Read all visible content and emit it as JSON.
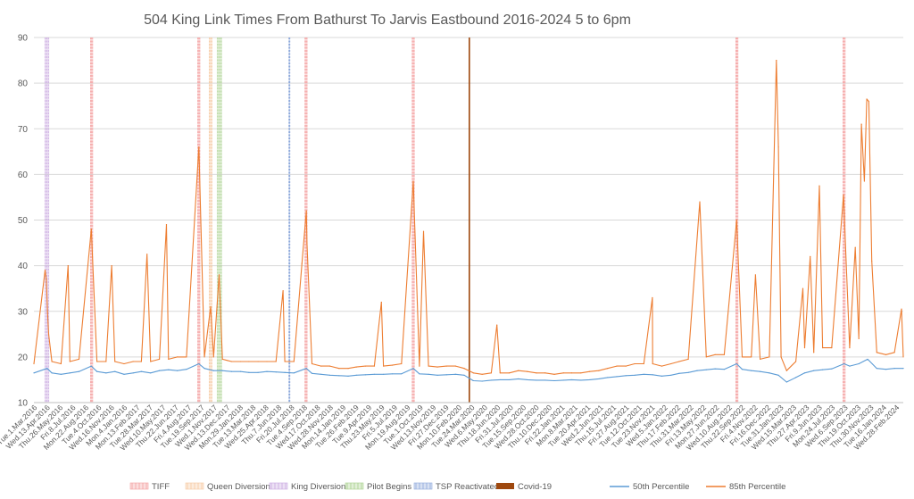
{
  "chart_data": {
    "type": "line",
    "title": "504 King Link Times From Bathurst To Jarvis Eastbound 2016-2024 5 to 6pm",
    "xlabel": "",
    "ylabel": "",
    "ylim": [
      10,
      90
    ],
    "yticks": [
      10,
      20,
      30,
      40,
      50,
      60,
      70,
      80,
      90
    ],
    "grid": true,
    "legend_position": "bottom",
    "x_range": [
      "2016-03-01",
      "2024-03-31"
    ],
    "x_tick_labels": [
      "Tue.1.Mar.2016",
      "Wed.13.Apr.2016",
      "Thu.26.May.2016",
      "Fri.8.Jul.2016",
      "Mon.22.Aug.2016",
      "Tue.4.Oct.2016",
      "Wed.16.Nov.2016",
      "Mon.4.Jan.2016",
      "Mon.13.Feb.2017",
      "Tue.28.Mar.2017",
      "Wed.10.May.2017",
      "Thu.22.Jun.2017",
      "Fri.4.Aug.2017",
      "Tue.19.Sep.2017",
      "Wed.1.Nov.2017",
      "Wed.13.Dec.2017",
      "Mon.29.Jan.2018",
      "Tue.13.Mar.2018",
      "Wed.25.Apr.2018",
      "Thu.7.Jun.2018",
      "Fri.20.Jul.2018",
      "Tue.4.Sep.2018",
      "Wed.17.Oct.2018",
      "Wed.28.Nov.2018",
      "Mon.14.Jan.2019",
      "Tue.26.Feb.2019",
      "Tue.9.Apr.2019",
      "Thu.23.May.2019",
      "Fri.5.Jul.2019",
      "Mon.19.Aug.2019",
      "Tue.1.Oct.2019",
      "Wed.13.Nov.2019",
      "Fri.27.Dec.2019",
      "Mon.10.Feb.2020",
      "Tue.24.Mar.2020",
      "Wed.6.May.2020",
      "Thu.18.Jun.2020",
      "Fri.31.Jul.2020",
      "Tue.15.Sep.2020",
      "Wed.28.Oct.2020",
      "Thu.10.Dec.2020",
      "Fri.22.Jan.2021",
      "Mon.8.Mar.2021",
      "Tue.20.Apr.2021",
      "Wed.2.Jun.2021",
      "Thu.15.Jul.2021",
      "Fri.27.Aug.2021",
      "Tue.12.Oct.2021",
      "Tue.23.Nov.2021",
      "Wed.5.Jan.2022",
      "Thu.17.Feb.2022",
      "Thu.31.Mar.2022",
      "Fri.13.May.2022",
      "Mon.27.Jun.2022",
      "Wed.10.Aug.2022",
      "Thu.22.Sep.2022",
      "Fri.4.Nov.2022",
      "Fri.16.Dec.2022",
      "Tue.31.Jan.2023",
      "Wed.15.Mar.2023",
      "Thu.27.Apr.2023",
      "Fri.9.Jun.2023",
      "Mon.24.Jul.2023",
      "Wed.6.Sep.2023",
      "Thu.19.Oct.2023",
      "Thu.30.Nov.2023",
      "Tue.16.Jan.2024",
      "Wed.28.Feb.2024"
    ],
    "legend": [
      {
        "name": "TIFF",
        "color": "#f4a0a0",
        "style": "hatch"
      },
      {
        "name": "Queen Diversion",
        "color": "#f5c8a0",
        "style": "hatch"
      },
      {
        "name": "King Diversion",
        "color": "#c9a8e0",
        "style": "hatch"
      },
      {
        "name": "Pilot Begins",
        "color": "#a8d08d",
        "style": "hatch"
      },
      {
        "name": "TSP Reactivated",
        "color": "#8ea9db",
        "style": "hatch"
      },
      {
        "name": "Covid-19",
        "color": "#9e480e",
        "style": "solid"
      },
      {
        "name": "50th Percentile",
        "color": "#5b9bd5",
        "style": "line"
      },
      {
        "name": "85th Percentile",
        "color": "#ed7d31",
        "style": "line"
      }
    ],
    "event_bands": [
      {
        "name": "King Diversion",
        "start": "2016-04-06",
        "end": "2016-04-22",
        "color": "#c9a8e0"
      },
      {
        "name": "TIFF",
        "start": "2016-09-08",
        "end": "2016-09-18",
        "color": "#f4a0a0"
      },
      {
        "name": "TIFF",
        "start": "2017-09-07",
        "end": "2017-09-17",
        "color": "#f4a0a0"
      },
      {
        "name": "Queen Diversion",
        "start": "2017-10-16",
        "end": "2017-10-28",
        "color": "#f5c8a0"
      },
      {
        "name": "Pilot Begins",
        "start": "2017-11-12",
        "end": "2017-11-30",
        "color": "#a8d08d"
      },
      {
        "name": "TSP Reactivated",
        "start": "2018-07-14",
        "end": "2018-07-19",
        "color": "#8ea9db"
      },
      {
        "name": "TIFF",
        "start": "2018-09-06",
        "end": "2018-09-16",
        "color": "#f4a0a0"
      },
      {
        "name": "TIFF",
        "start": "2019-09-05",
        "end": "2019-09-15",
        "color": "#f4a0a0"
      },
      {
        "name": "Covid-19",
        "start": "2020-03-16",
        "end": "2020-03-17",
        "color": "#9e480e"
      },
      {
        "name": "TIFF",
        "start": "2022-09-08",
        "end": "2022-09-18",
        "color": "#f4a0a0"
      },
      {
        "name": "TIFF",
        "start": "2023-09-07",
        "end": "2023-09-17",
        "color": "#f4a0a0"
      }
    ],
    "series": [
      {
        "name": "50th Percentile",
        "color": "#5b9bd5",
        "points": [
          [
            "2016-03-01",
            16.5
          ],
          [
            "2016-04-15",
            17.5
          ],
          [
            "2016-05-01",
            16.5
          ],
          [
            "2016-06-01",
            16.2
          ],
          [
            "2016-07-01",
            16.5
          ],
          [
            "2016-08-01",
            16.8
          ],
          [
            "2016-09-12",
            18.0
          ],
          [
            "2016-10-01",
            16.8
          ],
          [
            "2016-11-01",
            16.5
          ],
          [
            "2016-12-01",
            16.8
          ],
          [
            "2017-01-01",
            16.2
          ],
          [
            "2017-02-01",
            16.5
          ],
          [
            "2017-03-01",
            16.8
          ],
          [
            "2017-04-01",
            16.5
          ],
          [
            "2017-05-01",
            17.0
          ],
          [
            "2017-06-01",
            17.2
          ],
          [
            "2017-07-01",
            17.0
          ],
          [
            "2017-08-01",
            17.3
          ],
          [
            "2017-09-12",
            18.5
          ],
          [
            "2017-10-01",
            17.5
          ],
          [
            "2017-11-01",
            17.0
          ],
          [
            "2017-12-01",
            17.0
          ],
          [
            "2018-01-01",
            16.8
          ],
          [
            "2018-02-01",
            16.8
          ],
          [
            "2018-03-01",
            16.6
          ],
          [
            "2018-04-01",
            16.6
          ],
          [
            "2018-05-01",
            16.8
          ],
          [
            "2018-06-01",
            16.7
          ],
          [
            "2018-07-01",
            16.6
          ],
          [
            "2018-08-01",
            16.5
          ],
          [
            "2018-09-12",
            17.5
          ],
          [
            "2018-10-01",
            16.4
          ],
          [
            "2018-11-01",
            16.2
          ],
          [
            "2018-12-01",
            16.0
          ],
          [
            "2019-01-01",
            15.9
          ],
          [
            "2019-02-01",
            15.8
          ],
          [
            "2019-03-01",
            16.0
          ],
          [
            "2019-04-01",
            16.1
          ],
          [
            "2019-05-01",
            16.2
          ],
          [
            "2019-06-01",
            16.2
          ],
          [
            "2019-07-01",
            16.3
          ],
          [
            "2019-08-01",
            16.3
          ],
          [
            "2019-09-10",
            17.5
          ],
          [
            "2019-10-01",
            16.3
          ],
          [
            "2019-11-01",
            16.2
          ],
          [
            "2019-12-01",
            16.0
          ],
          [
            "2020-01-01",
            16.1
          ],
          [
            "2020-02-01",
            16.2
          ],
          [
            "2020-03-01",
            16.0
          ],
          [
            "2020-04-01",
            14.8
          ],
          [
            "2020-05-01",
            14.7
          ],
          [
            "2020-06-01",
            14.9
          ],
          [
            "2020-07-01",
            15.0
          ],
          [
            "2020-08-01",
            15.0
          ],
          [
            "2020-09-01",
            15.2
          ],
          [
            "2020-10-01",
            15.0
          ],
          [
            "2020-11-01",
            14.9
          ],
          [
            "2020-12-01",
            14.9
          ],
          [
            "2021-01-01",
            14.8
          ],
          [
            "2021-02-01",
            14.9
          ],
          [
            "2021-03-01",
            15.0
          ],
          [
            "2021-04-01",
            14.9
          ],
          [
            "2021-05-01",
            15.0
          ],
          [
            "2021-06-01",
            15.2
          ],
          [
            "2021-07-01",
            15.5
          ],
          [
            "2021-08-01",
            15.7
          ],
          [
            "2021-09-01",
            15.9
          ],
          [
            "2021-10-01",
            16.0
          ],
          [
            "2021-11-01",
            16.2
          ],
          [
            "2021-12-01",
            16.1
          ],
          [
            "2022-01-01",
            15.8
          ],
          [
            "2022-02-01",
            16.0
          ],
          [
            "2022-03-01",
            16.4
          ],
          [
            "2022-04-01",
            16.6
          ],
          [
            "2022-05-01",
            17.0
          ],
          [
            "2022-06-01",
            17.2
          ],
          [
            "2022-07-01",
            17.4
          ],
          [
            "2022-08-01",
            17.3
          ],
          [
            "2022-09-12",
            18.5
          ],
          [
            "2022-10-01",
            17.3
          ],
          [
            "2022-11-01",
            17.0
          ],
          [
            "2022-12-01",
            16.8
          ],
          [
            "2023-01-01",
            16.5
          ],
          [
            "2023-02-01",
            16.0
          ],
          [
            "2023-03-01",
            14.5
          ],
          [
            "2023-04-01",
            15.5
          ],
          [
            "2023-05-01",
            16.5
          ],
          [
            "2023-06-01",
            17.0
          ],
          [
            "2023-07-01",
            17.2
          ],
          [
            "2023-08-01",
            17.4
          ],
          [
            "2023-09-12",
            18.5
          ],
          [
            "2023-10-01",
            18.0
          ],
          [
            "2023-11-01",
            18.5
          ],
          [
            "2023-12-01",
            19.5
          ],
          [
            "2024-01-01",
            17.5
          ],
          [
            "2024-02-01",
            17.3
          ],
          [
            "2024-03-01",
            17.5
          ],
          [
            "2024-03-31",
            17.5
          ]
        ]
      },
      {
        "name": "85th Percentile",
        "color": "#ed7d31",
        "points": [
          [
            "2016-03-01",
            18.5
          ],
          [
            "2016-04-08",
            39
          ],
          [
            "2016-04-12",
            37
          ],
          [
            "2016-04-16",
            30
          ],
          [
            "2016-04-20",
            25
          ],
          [
            "2016-05-01",
            19
          ],
          [
            "2016-06-01",
            18.5
          ],
          [
            "2016-06-25",
            40
          ],
          [
            "2016-07-01",
            19
          ],
          [
            "2016-08-01",
            19.5
          ],
          [
            "2016-09-12",
            48
          ],
          [
            "2016-10-01",
            19
          ],
          [
            "2016-11-01",
            19
          ],
          [
            "2016-11-20",
            40
          ],
          [
            "2016-12-01",
            19
          ],
          [
            "2017-01-01",
            18.5
          ],
          [
            "2017-02-01",
            19
          ],
          [
            "2017-03-01",
            19
          ],
          [
            "2017-03-20",
            42.5
          ],
          [
            "2017-04-01",
            19
          ],
          [
            "2017-05-01",
            19.5
          ],
          [
            "2017-05-25",
            49
          ],
          [
            "2017-06-01",
            19.5
          ],
          [
            "2017-07-01",
            20
          ],
          [
            "2017-08-01",
            20
          ],
          [
            "2017-09-12",
            66
          ],
          [
            "2017-10-01",
            20
          ],
          [
            "2017-10-22",
            31
          ],
          [
            "2017-11-01",
            20
          ],
          [
            "2017-11-20",
            38
          ],
          [
            "2017-12-01",
            19.5
          ],
          [
            "2018-01-01",
            19
          ],
          [
            "2018-02-01",
            19
          ],
          [
            "2018-03-01",
            19
          ],
          [
            "2018-04-01",
            19
          ],
          [
            "2018-05-01",
            19
          ],
          [
            "2018-06-01",
            19
          ],
          [
            "2018-06-25",
            34.5
          ],
          [
            "2018-07-01",
            19
          ],
          [
            "2018-08-01",
            19
          ],
          [
            "2018-08-28",
            40.5
          ],
          [
            "2018-09-12",
            52
          ],
          [
            "2018-09-14",
            45
          ],
          [
            "2018-10-01",
            18.5
          ],
          [
            "2018-11-01",
            18
          ],
          [
            "2018-12-01",
            18
          ],
          [
            "2019-01-01",
            17.5
          ],
          [
            "2019-02-01",
            17.5
          ],
          [
            "2019-03-01",
            17.8
          ],
          [
            "2019-04-01",
            18
          ],
          [
            "2019-05-01",
            18
          ],
          [
            "2019-05-25",
            32
          ],
          [
            "2019-06-01",
            18
          ],
          [
            "2019-07-01",
            18.2
          ],
          [
            "2019-08-01",
            18.5
          ],
          [
            "2019-09-10",
            58.5
          ],
          [
            "2019-10-01",
            18
          ],
          [
            "2019-10-15",
            47.5
          ],
          [
            "2019-11-01",
            18
          ],
          [
            "2019-12-01",
            17.8
          ],
          [
            "2020-01-01",
            18
          ],
          [
            "2020-02-01",
            18
          ],
          [
            "2020-03-01",
            17.5
          ],
          [
            "2020-04-01",
            16.5
          ],
          [
            "2020-05-01",
            16.2
          ],
          [
            "2020-06-01",
            16.5
          ],
          [
            "2020-06-20",
            27
          ],
          [
            "2020-07-01",
            16.5
          ],
          [
            "2020-08-01",
            16.5
          ],
          [
            "2020-09-01",
            17
          ],
          [
            "2020-10-01",
            16.8
          ],
          [
            "2020-11-01",
            16.5
          ],
          [
            "2020-12-01",
            16.5
          ],
          [
            "2021-01-01",
            16.2
          ],
          [
            "2021-02-01",
            16.5
          ],
          [
            "2021-03-01",
            16.5
          ],
          [
            "2021-04-01",
            16.5
          ],
          [
            "2021-05-01",
            16.8
          ],
          [
            "2021-06-01",
            17
          ],
          [
            "2021-07-01",
            17.5
          ],
          [
            "2021-08-01",
            18
          ],
          [
            "2021-09-01",
            18
          ],
          [
            "2021-10-01",
            18.5
          ],
          [
            "2021-11-01",
            18.5
          ],
          [
            "2021-11-30",
            33
          ],
          [
            "2021-12-01",
            18.5
          ],
          [
            "2022-01-01",
            18
          ],
          [
            "2022-02-01",
            18.5
          ],
          [
            "2022-03-01",
            19
          ],
          [
            "2022-04-01",
            19.5
          ],
          [
            "2022-05-10",
            54
          ],
          [
            "2022-06-01",
            20
          ],
          [
            "2022-07-01",
            20.5
          ],
          [
            "2022-08-01",
            20.5
          ],
          [
            "2022-09-12",
            50
          ],
          [
            "2022-10-01",
            20
          ],
          [
            "2022-11-01",
            20
          ],
          [
            "2022-11-15",
            38
          ],
          [
            "2022-12-01",
            19.5
          ],
          [
            "2023-01-01",
            20
          ],
          [
            "2023-01-25",
            85
          ],
          [
            "2023-02-01",
            66
          ],
          [
            "2023-02-10",
            20
          ],
          [
            "2023-03-01",
            17
          ],
          [
            "2023-04-01",
            19
          ],
          [
            "2023-04-25",
            35
          ],
          [
            "2023-05-01",
            22
          ],
          [
            "2023-05-20",
            42
          ],
          [
            "2023-06-01",
            21
          ],
          [
            "2023-06-20",
            57.5
          ],
          [
            "2023-07-01",
            22
          ],
          [
            "2023-08-01",
            22
          ],
          [
            "2023-09-10",
            55.5
          ],
          [
            "2023-09-14",
            49
          ],
          [
            "2023-10-01",
            22
          ],
          [
            "2023-10-20",
            44
          ],
          [
            "2023-11-01",
            24
          ],
          [
            "2023-11-10",
            71
          ],
          [
            "2023-11-20",
            58.5
          ],
          [
            "2023-11-28",
            76.5
          ],
          [
            "2023-12-05",
            76
          ],
          [
            "2023-12-15",
            41
          ],
          [
            "2024-01-01",
            21
          ],
          [
            "2024-02-01",
            20.5
          ],
          [
            "2024-03-01",
            21
          ],
          [
            "2024-03-25",
            30.5
          ],
          [
            "2024-03-31",
            20
          ]
        ]
      }
    ]
  }
}
